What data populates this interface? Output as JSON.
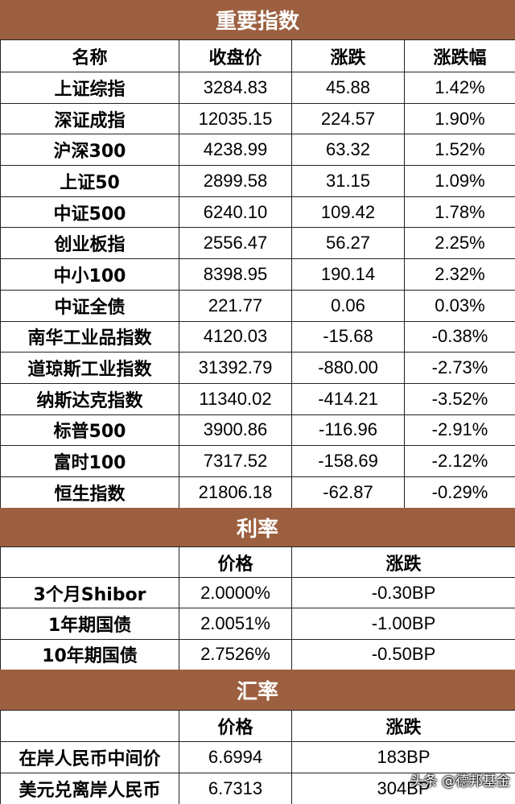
{
  "sections": {
    "indices": {
      "title": "重要指数",
      "headers": [
        "名称",
        "收盘价",
        "涨跌",
        "涨跌幅"
      ],
      "rows": [
        [
          "上证综指",
          "3284.83",
          "45.88",
          "1.42%"
        ],
        [
          "深证成指",
          "12035.15",
          "224.57",
          "1.90%"
        ],
        [
          "沪深300",
          "4238.99",
          "63.32",
          "1.52%"
        ],
        [
          "上证50",
          "2899.58",
          "31.15",
          "1.09%"
        ],
        [
          "中证500",
          "6240.10",
          "109.42",
          "1.78%"
        ],
        [
          "创业板指",
          "2556.47",
          "56.27",
          "2.25%"
        ],
        [
          "中小100",
          "8398.95",
          "190.14",
          "2.32%"
        ],
        [
          "中证全债",
          "221.77",
          "0.06",
          "0.03%"
        ],
        [
          "南华工业品指数",
          "4120.03",
          "-15.68",
          "-0.38%"
        ],
        [
          "道琼斯工业指数",
          "31392.79",
          "-880.00",
          "-2.73%"
        ],
        [
          "纳斯达克指数",
          "11340.02",
          "-414.21",
          "-3.52%"
        ],
        [
          "标普500",
          "3900.86",
          "-116.96",
          "-2.91%"
        ],
        [
          "富时100",
          "7317.52",
          "-158.69",
          "-2.12%"
        ],
        [
          "恒生指数",
          "21806.18",
          "-62.87",
          "-0.29%"
        ]
      ]
    },
    "rates": {
      "title": "利率",
      "headers": [
        "",
        "价格",
        "涨跌"
      ],
      "rows": [
        [
          "3个月Shibor",
          "2.0000%",
          "-0.30BP"
        ],
        [
          "1年期国债",
          "2.0051%",
          "-1.00BP"
        ],
        [
          "10年期国债",
          "2.7526%",
          "-0.50BP"
        ]
      ]
    },
    "fx": {
      "title": "汇率",
      "headers": [
        "",
        "价格",
        "涨跌"
      ],
      "rows": [
        [
          "在岸人民币中间价",
          "6.6994",
          "183BP"
        ],
        [
          "美元兑离岸人民币",
          "6.7313",
          "304BP"
        ]
      ]
    }
  },
  "watermark": "头条 @德邦基金",
  "colors": {
    "section_header_bg": "#9c6040",
    "section_header_text": "#ffffff",
    "grid_line": "#222222"
  }
}
